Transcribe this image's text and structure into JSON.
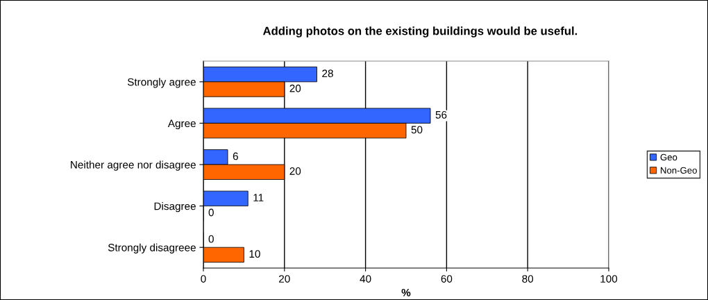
{
  "chart_data": {
    "type": "bar",
    "orientation": "horizontal",
    "title": "Adding photos on the existing buildings would be useful.",
    "xlabel": "%",
    "categories": [
      "Strongly agree",
      "Agree",
      "Neither agree nor disagree",
      "Disagree",
      "Strongly disagreee"
    ],
    "series": [
      {
        "name": "Geo",
        "color": "#3366ff",
        "values": [
          28,
          56,
          6,
          11,
          0
        ]
      },
      {
        "name": "Non-Geo",
        "color": "#ff6600",
        "values": [
          20,
          50,
          20,
          0,
          10
        ]
      }
    ],
    "xlim": [
      0,
      100
    ],
    "xticks": [
      0,
      20,
      40,
      60,
      80,
      100
    ],
    "grid": "x",
    "legend": "right",
    "data_labels": true
  }
}
